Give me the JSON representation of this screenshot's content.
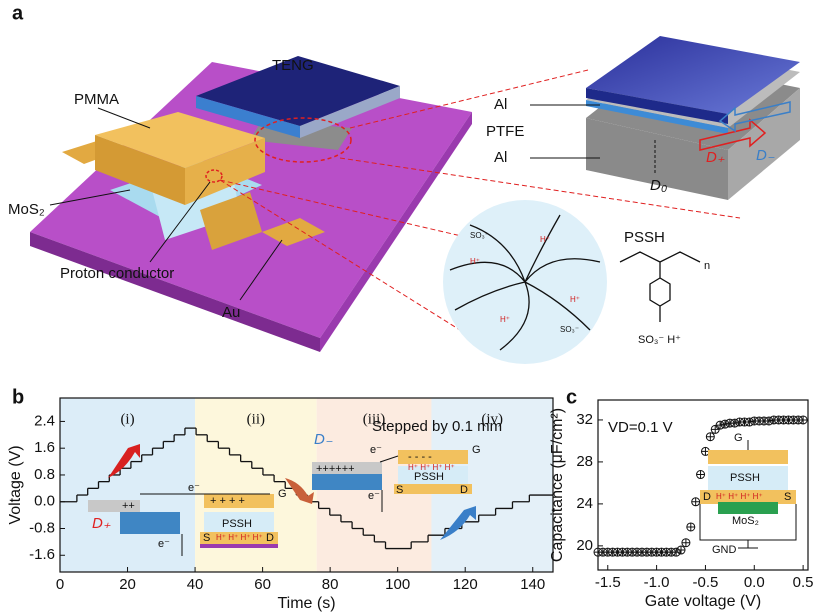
{
  "panel_labels": [
    "a",
    "b",
    "c"
  ],
  "diagram": {
    "labels": [
      "TENG",
      "PMMA",
      "MoS₂",
      "Proton conductor",
      "Au",
      "Al",
      "PTFE",
      "Al",
      "D₀",
      "D₋",
      "D₊",
      "PSSH",
      "n",
      "SO₃⁻ H⁺",
      "H⁺",
      "SO₃⁻"
    ]
  },
  "chart_data": [
    {
      "type": "step",
      "xlabel": "Time (s)",
      "ylabel": "Voltage (V)",
      "color": "#111111",
      "x": [
        0,
        5,
        8.2,
        11.4,
        14.6,
        17.8,
        21,
        24.2,
        27.4,
        30.6,
        33.8,
        37,
        40.3,
        43.6,
        46.9,
        50.2,
        53.5,
        56.8,
        60.1,
        63.4,
        66.7,
        70,
        73.3,
        76.6,
        79.9,
        83.2,
        86.5,
        89.8,
        93.1,
        96.4,
        104,
        109,
        114,
        119,
        124,
        129,
        134,
        139,
        146
      ],
      "values": [
        0,
        0.2,
        0.4,
        0.6,
        0.8,
        1.0,
        1.2,
        1.4,
        1.6,
        1.8,
        2.0,
        2.2,
        2.0,
        1.8,
        1.6,
        1.4,
        1.2,
        1.0,
        0.8,
        0.6,
        0.4,
        0.2,
        0,
        -0.2,
        -0.4,
        -0.6,
        -0.8,
        -1.0,
        -1.2,
        -1.4,
        -1.2,
        -1.0,
        -0.8,
        -0.6,
        -0.4,
        -0.2,
        0,
        0.2,
        0.2
      ],
      "xlim": [
        0,
        146
      ],
      "xticks": [
        0,
        20,
        40,
        60,
        80,
        100,
        120,
        140
      ],
      "ylim": [
        -2.1,
        3.1
      ],
      "yticks": [
        -1.6,
        -0.8,
        {
          "value": 0,
          "label": "0.0"
        },
        0.8,
        1.6,
        2.4
      ],
      "regions": [
        {
          "label": "(i)",
          "x0": 0,
          "x1": 40,
          "color": "#dcedf8"
        },
        {
          "label": "(ii)",
          "x0": 40,
          "x1": 76,
          "color": "#fdf7dc"
        },
        {
          "label": "(iii)",
          "x0": 76,
          "x1": 110,
          "color": "#fcebe0"
        },
        {
          "label": "(iv)",
          "x0": 110,
          "x1": 146,
          "color": "#e4f0f8"
        }
      ],
      "annotations": [
        "Stepped by 0.1 mm",
        "D₊",
        "D₋",
        "e⁻",
        "++",
        "+ + + +",
        "G",
        "PSSH",
        "S",
        "D",
        "H⁺ H⁺ H⁺ H⁺",
        "++++++",
        "- - - -"
      ]
    },
    {
      "type": "scatter",
      "xlabel": "Gate voltage (V)",
      "ylabel": "Capacitance (μF/cm²)",
      "color": "#111111",
      "x": [
        -1.6,
        -1.55,
        -1.5,
        -1.45,
        -1.4,
        -1.35,
        -1.3,
        -1.25,
        -1.2,
        -1.15,
        -1.1,
        -1.05,
        -1.0,
        -0.95,
        -0.9,
        -0.85,
        -0.8,
        -0.75,
        -0.7,
        -0.65,
        -0.6,
        -0.55,
        -0.5,
        -0.45,
        -0.4,
        -0.35,
        -0.3,
        -0.25,
        -0.2,
        -0.15,
        -0.1,
        -0.05,
        0,
        0.05,
        0.1,
        0.15,
        0.2,
        0.25,
        0.3,
        0.35,
        0.4,
        0.45,
        0.5
      ],
      "values": [
        19.4,
        19.4,
        19.4,
        19.4,
        19.4,
        19.4,
        19.4,
        19.4,
        19.4,
        19.4,
        19.4,
        19.4,
        19.4,
        19.4,
        19.4,
        19.4,
        19.4,
        19.6,
        20.3,
        21.8,
        24.2,
        26.8,
        29.0,
        30.4,
        31.1,
        31.5,
        31.6,
        31.7,
        31.7,
        31.8,
        31.8,
        31.8,
        31.9,
        31.9,
        31.9,
        31.9,
        32.0,
        32.0,
        32.0,
        32.0,
        32.0,
        32.0,
        32.0
      ],
      "xlim": [
        -1.6,
        0.55
      ],
      "xticks": [
        -1.5,
        {
          "value": -1,
          "label": "-1.0"
        },
        -0.5,
        {
          "value": 0,
          "label": "0.0"
        },
        0.5
      ],
      "ylim": [
        17.7,
        33.9
      ],
      "yticks": [
        20,
        24,
        28,
        32
      ],
      "annotations": [
        "VD=0.1 V",
        "G",
        "PSSH",
        "D",
        "S",
        "MoS₂",
        "GND",
        "H⁺ H⁺ H⁺ H⁺"
      ]
    }
  ]
}
